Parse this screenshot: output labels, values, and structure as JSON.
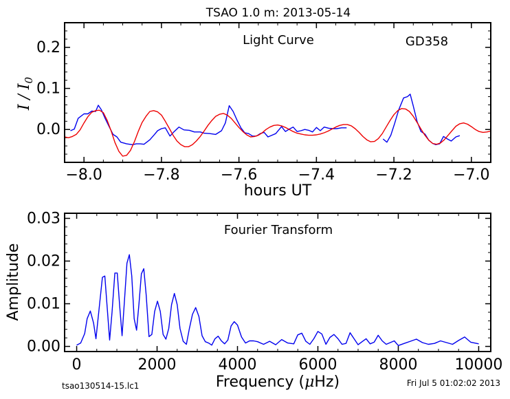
{
  "title": "TSAO 1.0 m:  2013-05-14",
  "footer_left": "tsao130514-15.lc1",
  "footer_right": "Fri Jul  5 01:02:02 2013",
  "chart_data": [
    {
      "type": "line",
      "annotation": "Light Curve",
      "annotation_right": "GD358",
      "xlabel": "hours UT",
      "ylabel": "I / I",
      "ylabel_sub": "0",
      "xlim": [
        -8.05,
        -6.95
      ],
      "ylim": [
        -0.08,
        0.26
      ],
      "xticks": [
        -8.0,
        -7.8,
        -7.6,
        -7.4,
        -7.2,
        -7.0
      ],
      "xtick_labels": [
        "−8.0",
        "−7.8",
        "−7.6",
        "−7.4",
        "−7.2",
        "−7.0"
      ],
      "yticks": [
        0.0,
        0.1,
        0.2
      ],
      "ytick_labels": [
        "0.0",
        "0.1",
        "0.2"
      ],
      "grid": false,
      "series": [
        {
          "color": "#0000ee",
          "x": [
            -8.035,
            -8.025,
            -8.015,
            -8.0,
            -7.99,
            -7.98,
            -7.97,
            -7.963,
            -7.955,
            -7.945,
            -7.935,
            -7.925,
            -7.915,
            -7.905,
            -7.89,
            -7.875,
            -7.865,
            -7.855,
            -7.845,
            -7.83,
            -7.818,
            -7.81,
            -7.8,
            -7.79,
            -7.778,
            -7.768,
            -7.755,
            -7.742,
            -7.728,
            -7.715,
            -7.7,
            -7.69,
            -7.675,
            -7.66,
            -7.645,
            -7.635,
            -7.625,
            -7.615,
            -7.605,
            -7.595,
            -7.585,
            -7.575,
            -7.565,
            -7.555,
            -7.545,
            -7.535,
            -7.525,
            -7.515,
            -7.505,
            -7.49,
            -7.48,
            -7.47,
            -7.46,
            -7.45,
            -7.44,
            -7.43,
            -7.42,
            -7.41,
            -7.4,
            -7.39,
            -7.38,
            -7.368,
            -7.358,
            -7.348,
            -7.335,
            -7.322,
            null,
            -7.228,
            -7.218,
            -7.208,
            -7.198,
            -7.188,
            -7.175,
            -7.165,
            -7.158,
            -7.15,
            -7.14,
            -7.13,
            -7.12,
            -7.11,
            -7.1,
            -7.092,
            -7.082,
            -7.072,
            -7.062,
            -7.052,
            -7.04,
            -7.03
          ],
          "y": [
            -0.003,
            0.001,
            0.027,
            0.038,
            0.038,
            0.045,
            0.044,
            0.059,
            0.048,
            0.026,
            0.007,
            -0.012,
            -0.018,
            -0.031,
            -0.035,
            -0.037,
            -0.035,
            -0.035,
            -0.036,
            -0.025,
            -0.012,
            -0.003,
            0.002,
            0.004,
            -0.016,
            -0.006,
            0.006,
            -0.001,
            -0.002,
            -0.006,
            -0.006,
            -0.009,
            -0.01,
            -0.012,
            -0.003,
            0.016,
            0.058,
            0.044,
            0.023,
            0.004,
            -0.008,
            -0.01,
            -0.016,
            -0.016,
            -0.01,
            -0.007,
            -0.018,
            -0.014,
            -0.01,
            0.007,
            -0.005,
            0.001,
            0.006,
            -0.005,
            -0.003,
            0.0,
            -0.002,
            -0.006,
            0.005,
            -0.003,
            0.006,
            0.003,
            0.002,
            0.002,
            0.004,
            0.004,
            null,
            -0.023,
            -0.031,
            -0.014,
            0.015,
            0.047,
            0.077,
            0.08,
            0.086,
            0.057,
            0.019,
            -0.005,
            -0.011,
            -0.026,
            -0.034,
            -0.037,
            -0.035,
            -0.017,
            -0.023,
            -0.028,
            -0.018,
            -0.015
          ]
        },
        {
          "color": "#ee0000",
          "x": [
            -8.05,
            -8.04,
            -8.03,
            -8.02,
            -8.01,
            -8.0,
            -7.99,
            -7.98,
            -7.97,
            -7.96,
            -7.95,
            -7.94,
            -7.93,
            -7.92,
            -7.91,
            -7.9,
            -7.89,
            -7.88,
            -7.87,
            -7.86,
            -7.85,
            -7.84,
            -7.83,
            -7.82,
            -7.81,
            -7.8,
            -7.79,
            -7.78,
            -7.77,
            -7.76,
            -7.75,
            -7.74,
            -7.73,
            -7.72,
            -7.71,
            -7.7,
            -7.69,
            -7.68,
            -7.67,
            -7.66,
            -7.65,
            -7.64,
            -7.63,
            -7.62,
            -7.61,
            -7.6,
            -7.59,
            -7.58,
            -7.57,
            -7.56,
            -7.55,
            -7.54,
            -7.53,
            -7.52,
            -7.51,
            -7.5,
            -7.49,
            -7.48,
            -7.47,
            -7.46,
            -7.45,
            -7.44,
            -7.43,
            -7.42,
            -7.41,
            -7.4,
            -7.39,
            -7.38,
            -7.37,
            -7.36,
            -7.35,
            -7.34,
            -7.33,
            -7.32,
            -7.31,
            -7.3,
            -7.29,
            -7.28,
            -7.27,
            -7.26,
            -7.25,
            -7.24,
            -7.23,
            -7.22,
            -7.21,
            -7.2,
            -7.19,
            -7.18,
            -7.17,
            -7.16,
            -7.15,
            -7.14,
            -7.13,
            -7.12,
            -7.11,
            -7.1,
            -7.09,
            -7.08,
            -7.07,
            -7.06,
            -7.05,
            -7.04,
            -7.03,
            -7.02,
            -7.01,
            -7.0,
            -6.99,
            -6.98,
            -6.97,
            -6.96,
            -6.95
          ],
          "y": [
            -0.018,
            -0.02,
            -0.017,
            -0.012,
            -0.001,
            0.016,
            0.031,
            0.042,
            0.046,
            0.047,
            0.041,
            0.022,
            -0.003,
            -0.032,
            -0.053,
            -0.065,
            -0.063,
            -0.051,
            -0.03,
            -0.005,
            0.017,
            0.032,
            0.044,
            0.046,
            0.043,
            0.035,
            0.02,
            0.003,
            -0.014,
            -0.028,
            -0.037,
            -0.042,
            -0.042,
            -0.037,
            -0.028,
            -0.017,
            -0.004,
            0.01,
            0.022,
            0.032,
            0.037,
            0.039,
            0.035,
            0.027,
            0.016,
            0.005,
            -0.005,
            -0.013,
            -0.018,
            -0.017,
            -0.014,
            -0.008,
            0.0,
            0.006,
            0.01,
            0.011,
            0.009,
            0.005,
            0.0,
            -0.005,
            -0.009,
            -0.011,
            -0.013,
            -0.014,
            -0.014,
            -0.013,
            -0.011,
            -0.008,
            -0.004,
            0.001,
            0.006,
            0.01,
            0.012,
            0.012,
            0.009,
            0.002,
            -0.007,
            -0.017,
            -0.025,
            -0.03,
            -0.029,
            -0.022,
            -0.01,
            0.006,
            0.022,
            0.036,
            0.046,
            0.051,
            0.05,
            0.044,
            0.032,
            0.017,
            0.001,
            -0.014,
            -0.026,
            -0.034,
            -0.036,
            -0.033,
            -0.025,
            -0.014,
            -0.003,
            0.008,
            0.014,
            0.016,
            0.013,
            0.007,
            0.0,
            -0.005,
            -0.007,
            -0.006,
            -0.004
          ]
        }
      ]
    },
    {
      "type": "line",
      "annotation": "Fourier Transform",
      "xlabel": "Frequency (",
      "xlabel_mu": "μ",
      "xlabel_tail": "Hz)",
      "ylabel": "Amplitude",
      "xlim": [
        -300,
        10300
      ],
      "ylim": [
        -0.0012,
        0.0312
      ],
      "xticks": [
        0,
        2000,
        4000,
        6000,
        8000,
        10000
      ],
      "xtick_labels": [
        "0",
        "2000",
        "4000",
        "6000",
        "8000",
        "10000"
      ],
      "yticks": [
        0.0,
        0.01,
        0.02,
        0.03
      ],
      "ytick_labels": [
        "0.00",
        "0.01",
        "0.02",
        "0.03"
      ],
      "grid": false,
      "series": [
        {
          "color": "#0000ee",
          "x": [
            0,
            100,
            200,
            260,
            340,
            420,
            480,
            560,
            640,
            700,
            760,
            820,
            880,
            950,
            1010,
            1070,
            1130,
            1190,
            1250,
            1310,
            1370,
            1430,
            1490,
            1550,
            1610,
            1670,
            1730,
            1800,
            1870,
            1940,
            2010,
            2080,
            2150,
            2220,
            2290,
            2360,
            2430,
            2500,
            2570,
            2650,
            2730,
            2800,
            2880,
            2960,
            3040,
            3120,
            3200,
            3280,
            3360,
            3440,
            3520,
            3600,
            3680,
            3760,
            3840,
            3920,
            4000,
            4100,
            4200,
            4300,
            4400,
            4500,
            4650,
            4800,
            4950,
            5100,
            5250,
            5400,
            5500,
            5600,
            5700,
            5800,
            5900,
            6000,
            6100,
            6200,
            6300,
            6400,
            6500,
            6600,
            6700,
            6800,
            6900,
            7000,
            7100,
            7200,
            7300,
            7400,
            7500,
            7600,
            7700,
            7800,
            7900,
            8000,
            8150,
            8300,
            8450,
            8600,
            8750,
            8900,
            9050,
            9200,
            9350,
            9500,
            9650,
            9800,
            10000
          ],
          "y": [
            0.0003,
            0.0008,
            0.003,
            0.0065,
            0.0083,
            0.0055,
            0.0018,
            0.009,
            0.0162,
            0.0165,
            0.009,
            0.0015,
            0.008,
            0.0172,
            0.0172,
            0.0095,
            0.0025,
            0.011,
            0.0195,
            0.0215,
            0.0165,
            0.0065,
            0.0038,
            0.01,
            0.017,
            0.0182,
            0.012,
            0.0023,
            0.0028,
            0.0082,
            0.0106,
            0.0082,
            0.0028,
            0.0017,
            0.0042,
            0.0098,
            0.0124,
            0.0098,
            0.0042,
            0.0012,
            0.0005,
            0.004,
            0.0075,
            0.0091,
            0.007,
            0.0025,
            0.0011,
            0.0008,
            0.0003,
            0.0018,
            0.0024,
            0.0013,
            0.0006,
            0.0015,
            0.0048,
            0.0058,
            0.005,
            0.0022,
            0.0008,
            0.0013,
            0.0013,
            0.0011,
            0.0005,
            0.0012,
            0.0004,
            0.0016,
            0.0008,
            0.0006,
            0.0027,
            0.0031,
            0.0012,
            0.0005,
            0.0018,
            0.0035,
            0.0029,
            0.0005,
            0.0021,
            0.0028,
            0.0018,
            0.0005,
            0.0007,
            0.0032,
            0.0018,
            0.0004,
            0.0011,
            0.0018,
            0.0006,
            0.001,
            0.0026,
            0.0013,
            0.0005,
            0.0009,
            0.0013,
            0.0002,
            0.0007,
            0.0012,
            0.0017,
            0.0009,
            0.0005,
            0.0007,
            0.0013,
            0.0009,
            0.0005,
            0.0014,
            0.0022,
            0.001,
            0.0006
          ]
        }
      ]
    }
  ]
}
